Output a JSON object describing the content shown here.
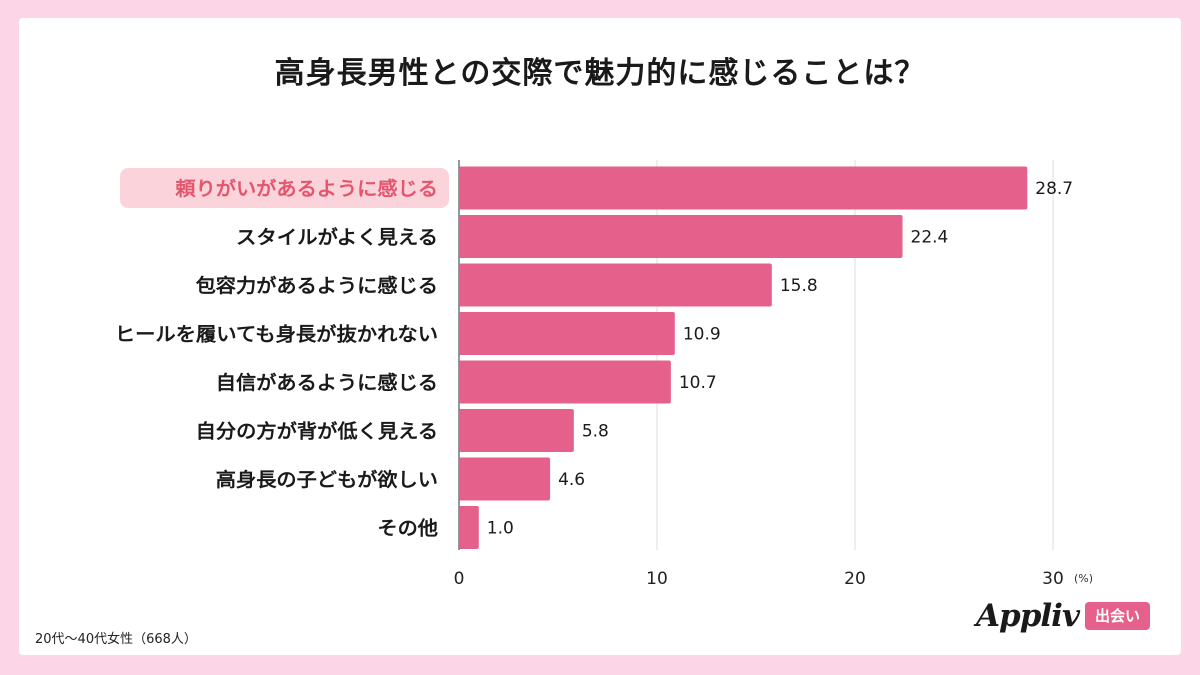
{
  "title": "高身長男性との交際で魅力的に感じることは？",
  "footnote": "20代〜40代女性（668人）",
  "logo": {
    "brand": "Appliv",
    "badge": "出会い"
  },
  "colors": {
    "bar": "#e5608a",
    "highlight_bg": "#fbd3db",
    "highlight_text": "#e4566e",
    "background": "#fcd6e6"
  },
  "chart_data": {
    "type": "bar",
    "orientation": "horizontal",
    "title": "高身長男性との交際で魅力的に感じることは？",
    "unit": "(%)",
    "xlim": [
      0,
      30
    ],
    "ticks": [
      "0",
      "10",
      "20",
      "30"
    ],
    "grid": true,
    "highlight_index": 0,
    "categories": [
      "頼りがいがあるように感じる",
      "スタイルがよく見える",
      "包容力があるように感じる",
      "ヒールを履いても身長が抜かれない",
      "自信があるように感じる",
      "自分の方が背が低く見える",
      "高身長の子どもが欲しい",
      "その他"
    ],
    "values": [
      28.7,
      22.4,
      15.8,
      10.9,
      10.7,
      5.8,
      4.6,
      1.0
    ],
    "value_labels": [
      "28.7",
      "22.4",
      "15.8",
      "10.9",
      "10.7",
      "5.8",
      "4.6",
      "1.0"
    ]
  }
}
